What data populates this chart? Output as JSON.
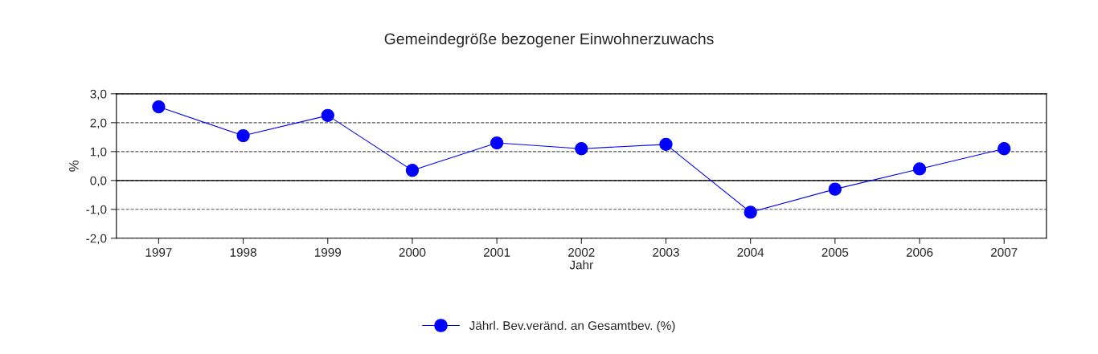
{
  "chart_data": {
    "type": "line",
    "title": "Gemeindegröße bezogener Einwohnerzuwachs",
    "xlabel": "Jahr",
    "ylabel": "%",
    "categories": [
      "1997",
      "1998",
      "1999",
      "2000",
      "2001",
      "2002",
      "2003",
      "2004",
      "2005",
      "2006",
      "2007"
    ],
    "series": [
      {
        "name": "Jährl. Bev.veränd. an Gesamtbev. (%)",
        "color": "#0000ff",
        "values": [
          2.55,
          1.55,
          2.25,
          0.35,
          1.3,
          1.1,
          1.25,
          -1.1,
          -0.3,
          0.4,
          1.1
        ]
      }
    ],
    "ylim": [
      -2,
      3
    ],
    "yticks": [
      {
        "value": -2,
        "label": "-2,0"
      },
      {
        "value": -1,
        "label": "-1,0"
      },
      {
        "value": 0,
        "label": "0,0"
      },
      {
        "value": 1,
        "label": "1,0"
      },
      {
        "value": 2,
        "label": "2,0"
      },
      {
        "value": 3,
        "label": "3,0"
      }
    ],
    "ref_lines": [
      {
        "axis": "y",
        "value": 0,
        "color": "#000000",
        "line_style": "solid"
      }
    ],
    "grid": "y",
    "legend": "bottom",
    "marker": "circle",
    "line_style": "solid"
  }
}
